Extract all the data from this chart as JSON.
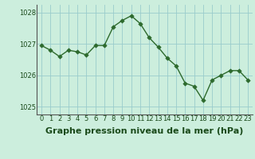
{
  "x": [
    0,
    1,
    2,
    3,
    4,
    5,
    6,
    7,
    8,
    9,
    10,
    11,
    12,
    13,
    14,
    15,
    16,
    17,
    18,
    19,
    20,
    21,
    22,
    23
  ],
  "y": [
    1026.95,
    1026.8,
    1026.6,
    1026.8,
    1026.75,
    1026.65,
    1026.95,
    1026.95,
    1027.55,
    1027.75,
    1027.9,
    1027.65,
    1027.2,
    1026.9,
    1026.55,
    1026.3,
    1025.75,
    1025.65,
    1025.2,
    1025.85,
    1026.0,
    1026.15,
    1026.15,
    1025.85
  ],
  "line_color": "#2d6a2d",
  "marker_color": "#2d6a2d",
  "bg_color": "#cceedd",
  "grid_color": "#99cccc",
  "xlabel": "Graphe pression niveau de la mer (hPa)",
  "xlabel_color": "#1a4a1a",
  "xlim": [
    -0.5,
    23.5
  ],
  "ylim": [
    1024.75,
    1028.25
  ],
  "yticks": [
    1025,
    1026,
    1027,
    1028
  ],
  "xticks": [
    0,
    1,
    2,
    3,
    4,
    5,
    6,
    7,
    8,
    9,
    10,
    11,
    12,
    13,
    14,
    15,
    16,
    17,
    18,
    19,
    20,
    21,
    22,
    23
  ],
  "tick_fontsize": 6.0,
  "xlabel_fontsize": 8.0,
  "marker_size": 2.8,
  "line_width": 1.0
}
